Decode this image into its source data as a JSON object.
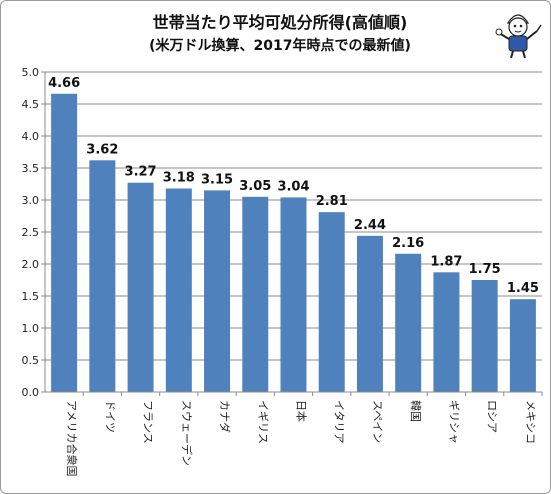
{
  "chart_data": {
    "type": "bar",
    "title": "世帯当たり平均可処分所得(高値順)",
    "subtitle": "(米万ドル換算、2017年時点での最新値)",
    "categories": [
      "アメリカ合衆国",
      "ドイツ",
      "フランス",
      "スウェーデン",
      "カナダ",
      "イギリス",
      "日本",
      "イタリア",
      "スペイン",
      "韓国",
      "ギリシャ",
      "ロシア",
      "メキシコ"
    ],
    "values": [
      4.66,
      3.62,
      3.27,
      3.18,
      3.15,
      3.05,
      3.04,
      2.81,
      2.44,
      2.16,
      1.87,
      1.75,
      1.45
    ],
    "value_labels": [
      "4.66",
      "3.62",
      "3.27",
      "3.18",
      "3.15",
      "3.05",
      "3.04",
      "2.81",
      "2.44",
      "2.16",
      "1.87",
      "1.75",
      "1.45"
    ],
    "y_ticks": [
      "0.0",
      "0.5",
      "1.0",
      "1.5",
      "2.0",
      "2.5",
      "3.0",
      "3.5",
      "4.0",
      "4.5",
      "5.0"
    ],
    "ylim": [
      0,
      5
    ],
    "grid": true,
    "legend": "none",
    "bar_color": "#4f81bd"
  },
  "decorations": {
    "mascot_icon": "cartoon-mascot-icon"
  }
}
